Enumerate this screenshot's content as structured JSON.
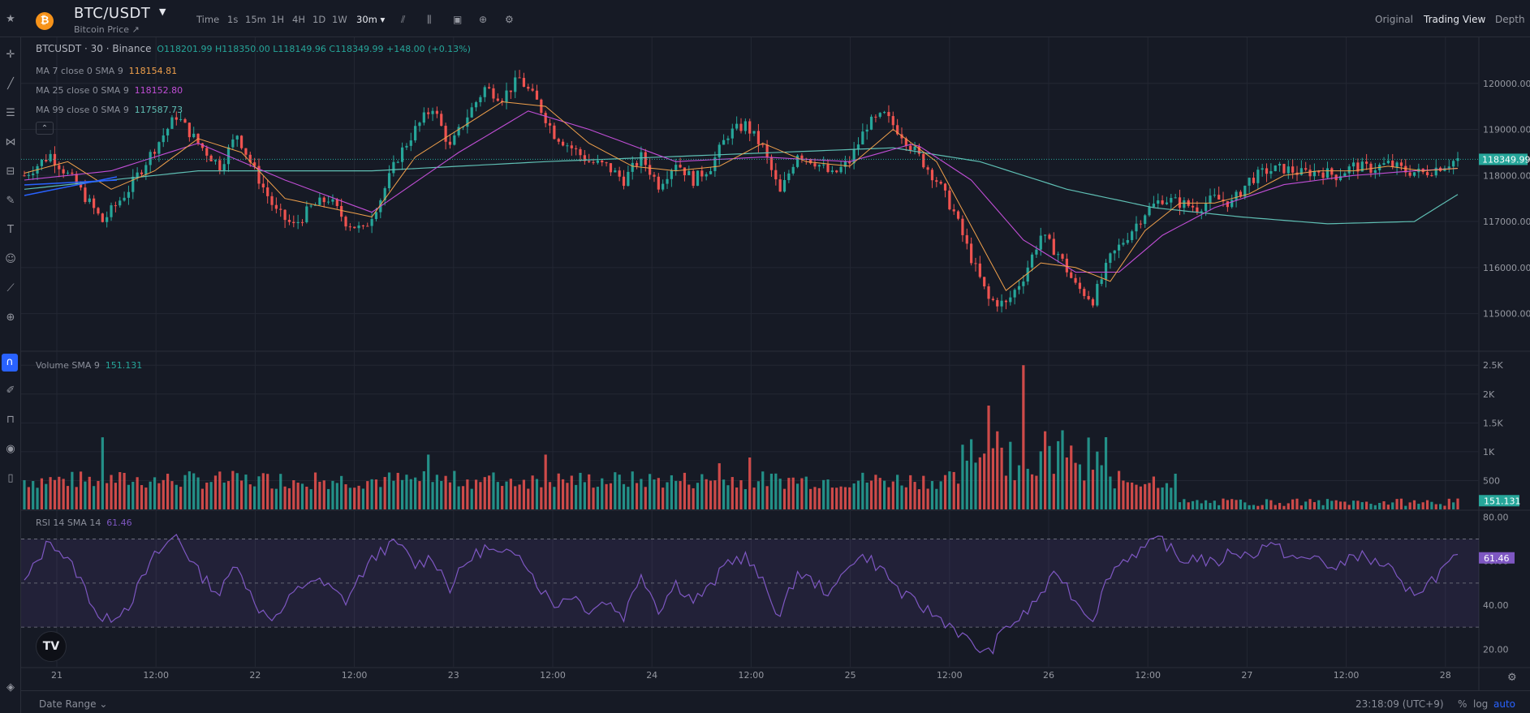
{
  "header": {
    "coin_icon": "bitcoin-icon",
    "symbol": "BTC/USDT",
    "subtitle": "Bitcoin Price ↗",
    "timeframes": [
      "Time",
      "1s",
      "15m",
      "1H",
      "4H",
      "1D",
      "1W",
      "30m ▾"
    ],
    "active_timeframe": "30m ▾",
    "tools": [
      "indicator-icon",
      "candle-type-icon",
      "camera-icon",
      "add-icon",
      "settings-icon"
    ],
    "views": [
      "Original",
      "Trading View",
      "Depth"
    ],
    "active_view": "Trading View"
  },
  "sidebar_icons": [
    "star-icon",
    "crosshair-icon",
    "trend-line-icon",
    "horizontal-lines-icon",
    "pattern-icon",
    "measure-icon",
    "brush-icon",
    "text-icon",
    "emoji-icon",
    "ruler-icon",
    "zoom-icon",
    "magnet-icon",
    "lock-drawings-icon",
    "lock-icon",
    "eye-icon",
    "trash-icon",
    "layers-icon"
  ],
  "legend": {
    "main": "BTCUSDT · 30 · Binance",
    "ohlc": "O118201.99 H118350.00 L118149.96 C118349.99 +148.00 (+0.13%)",
    "ma7_label": "MA 7 close 0 SMA 9",
    "ma7_value": "118154.81",
    "ma25_label": "MA 25 close 0 SMA 9",
    "ma25_value": "118152.80",
    "ma99_label": "MA 99 close 0 SMA 9",
    "ma99_value": "117587.73",
    "volume_label": "Volume SMA 9",
    "volume_value": "151.131",
    "rsi_label": "RSI 14 SMA 14",
    "rsi_value": "61.46"
  },
  "colors": {
    "up": "#26a69a",
    "down": "#ef5350",
    "ma7": "#f0a04b",
    "ma25": "#c14ed6",
    "ma99": "#5fbfb4",
    "rsi": "#7e57c2",
    "drawing": "#2962ff"
  },
  "footer": {
    "date_range": "Date Range ⌄",
    "clock": "23:18:09 (UTC+9)",
    "percent": "%",
    "log": "log",
    "auto": "auto"
  },
  "chart_data": [
    {
      "type": "candlestick",
      "name": "BTCUSDT 30m",
      "price_axis_ticks": [
        115000,
        116000,
        117000,
        118000,
        119000,
        120000
      ],
      "price_tick_labels": [
        "115000.00",
        "116000.00",
        "117000.00",
        "118000.00",
        "119000.00",
        "120000.00"
      ],
      "ylim": [
        114200,
        121000
      ],
      "last_price_label": "118349.99",
      "time_ticks": [
        "21",
        "12:00",
        "22",
        "12:00",
        "23",
        "12:00",
        "24",
        "12:00",
        "25",
        "12:00",
        "26",
        "12:00",
        "27",
        "12:00",
        "28"
      ],
      "close_path": [
        [
          0,
          118000
        ],
        [
          6,
          118450
        ],
        [
          12,
          117800
        ],
        [
          18,
          117000
        ],
        [
          24,
          117700
        ],
        [
          30,
          118600
        ],
        [
          35,
          119300
        ],
        [
          40,
          118700
        ],
        [
          45,
          118200
        ],
        [
          49,
          118900
        ],
        [
          53,
          118100
        ],
        [
          58,
          117200
        ],
        [
          62,
          116900
        ],
        [
          66,
          117300
        ],
        [
          70,
          117500
        ],
        [
          74,
          117000
        ],
        [
          78,
          116800
        ],
        [
          82,
          117500
        ],
        [
          86,
          118400
        ],
        [
          90,
          119000
        ],
        [
          94,
          119500
        ],
        [
          98,
          118600
        ],
        [
          102,
          119300
        ],
        [
          106,
          119900
        ],
        [
          110,
          119700
        ],
        [
          114,
          120100
        ],
        [
          118,
          119600
        ],
        [
          122,
          118900
        ],
        [
          126,
          118600
        ],
        [
          130,
          118300
        ],
        [
          134,
          118200
        ],
        [
          138,
          117900
        ],
        [
          142,
          118400
        ],
        [
          146,
          117800
        ],
        [
          150,
          118300
        ],
        [
          154,
          117900
        ],
        [
          158,
          118200
        ],
        [
          162,
          118900
        ],
        [
          166,
          119100
        ],
        [
          170,
          118600
        ],
        [
          174,
          117600
        ],
        [
          178,
          118500
        ],
        [
          182,
          118300
        ],
        [
          186,
          118000
        ],
        [
          190,
          118300
        ],
        [
          194,
          119100
        ],
        [
          198,
          119300
        ],
        [
          202,
          118900
        ],
        [
          206,
          118400
        ],
        [
          210,
          117900
        ],
        [
          214,
          117200
        ],
        [
          218,
          116200
        ],
        [
          222,
          115300
        ],
        [
          226,
          115200
        ],
        [
          230,
          115800
        ],
        [
          234,
          116700
        ],
        [
          238,
          116300
        ],
        [
          242,
          115600
        ],
        [
          246,
          115300
        ],
        [
          250,
          116200
        ],
        [
          254,
          116700
        ],
        [
          258,
          117200
        ],
        [
          262,
          117500
        ],
        [
          266,
          117400
        ],
        [
          270,
          117300
        ],
        [
          274,
          117500
        ],
        [
          278,
          117400
        ],
        [
          282,
          117900
        ],
        [
          286,
          118100
        ],
        [
          290,
          118150
        ],
        [
          294,
          118050
        ],
        [
          298,
          118100
        ],
        [
          302,
          118000
        ],
        [
          306,
          118200
        ],
        [
          310,
          118150
        ],
        [
          314,
          118250
        ],
        [
          318,
          118100
        ],
        [
          322,
          118050
        ],
        [
          326,
          118200
        ],
        [
          330,
          118349.99
        ]
      ],
      "ma7_path": [
        [
          0,
          118050
        ],
        [
          10,
          118300
        ],
        [
          20,
          117700
        ],
        [
          30,
          118100
        ],
        [
          40,
          118800
        ],
        [
          50,
          118500
        ],
        [
          60,
          117500
        ],
        [
          70,
          117300
        ],
        [
          80,
          117100
        ],
        [
          90,
          118400
        ],
        [
          100,
          119000
        ],
        [
          110,
          119600
        ],
        [
          120,
          119500
        ],
        [
          130,
          118700
        ],
        [
          140,
          118200
        ],
        [
          150,
          118100
        ],
        [
          160,
          118200
        ],
        [
          170,
          118700
        ],
        [
          180,
          118300
        ],
        [
          190,
          118200
        ],
        [
          200,
          119000
        ],
        [
          210,
          118300
        ],
        [
          218,
          116900
        ],
        [
          226,
          115500
        ],
        [
          234,
          116100
        ],
        [
          242,
          116000
        ],
        [
          250,
          115700
        ],
        [
          258,
          116800
        ],
        [
          266,
          117400
        ],
        [
          274,
          117400
        ],
        [
          282,
          117600
        ],
        [
          290,
          118000
        ],
        [
          298,
          118100
        ],
        [
          306,
          118100
        ],
        [
          314,
          118200
        ],
        [
          322,
          118100
        ],
        [
          330,
          118154.81
        ]
      ],
      "ma25_path": [
        [
          0,
          117900
        ],
        [
          20,
          118100
        ],
        [
          40,
          118700
        ],
        [
          60,
          117900
        ],
        [
          80,
          117200
        ],
        [
          100,
          118500
        ],
        [
          116,
          119400
        ],
        [
          130,
          119000
        ],
        [
          150,
          118300
        ],
        [
          170,
          118400
        ],
        [
          190,
          118300
        ],
        [
          205,
          118700
        ],
        [
          218,
          117900
        ],
        [
          230,
          116600
        ],
        [
          242,
          115900
        ],
        [
          252,
          115900
        ],
        [
          262,
          116700
        ],
        [
          274,
          117300
        ],
        [
          290,
          117800
        ],
        [
          306,
          118000
        ],
        [
          320,
          118100
        ],
        [
          330,
          118152.8
        ]
      ],
      "ma99_path": [
        [
          0,
          117700
        ],
        [
          40,
          118100
        ],
        [
          80,
          118100
        ],
        [
          120,
          118300
        ],
        [
          160,
          118450
        ],
        [
          200,
          118600
        ],
        [
          220,
          118300
        ],
        [
          240,
          117700
        ],
        [
          260,
          117300
        ],
        [
          280,
          117100
        ],
        [
          300,
          116950
        ],
        [
          320,
          117000
        ],
        [
          330,
          117587.73
        ]
      ]
    },
    {
      "type": "bar",
      "name": "Volume",
      "axis_ticks": [
        500,
        1000,
        1500,
        2000,
        2500
      ],
      "axis_tick_labels": [
        "500",
        "1K",
        "1.5K",
        "2K",
        "2.5K"
      ],
      "ylim": [
        0,
        2700
      ],
      "last_value_label": "151.131",
      "spikes": [
        [
          18,
          1250
        ],
        [
          67,
          640
        ],
        [
          93,
          950
        ],
        [
          120,
          950
        ],
        [
          160,
          800
        ],
        [
          167,
          900
        ],
        [
          222,
          1800
        ],
        [
          230,
          2500
        ],
        [
          240,
          900
        ]
      ]
    },
    {
      "type": "line",
      "name": "RSI 14",
      "axis_ticks": [
        20,
        40,
        60,
        80
      ],
      "axis_tick_labels": [
        "20.00",
        "40.00",
        "60.00",
        "80.00"
      ],
      "bands": [
        30,
        50,
        70
      ],
      "ylim": [
        12,
        82
      ],
      "last_value_label": "61.46",
      "path": [
        [
          0,
          50
        ],
        [
          6,
          70
        ],
        [
          12,
          55
        ],
        [
          18,
          32
        ],
        [
          24,
          40
        ],
        [
          30,
          62
        ],
        [
          35,
          72
        ],
        [
          40,
          55
        ],
        [
          45,
          45
        ],
        [
          49,
          60
        ],
        [
          53,
          40
        ],
        [
          58,
          34
        ],
        [
          62,
          45
        ],
        [
          66,
          52
        ],
        [
          70,
          48
        ],
        [
          74,
          42
        ],
        [
          78,
          55
        ],
        [
          82,
          65
        ],
        [
          86,
          68
        ],
        [
          90,
          58
        ],
        [
          94,
          62
        ],
        [
          98,
          48
        ],
        [
          102,
          60
        ],
        [
          106,
          66
        ],
        [
          110,
          62
        ],
        [
          114,
          65
        ],
        [
          118,
          50
        ],
        [
          122,
          40
        ],
        [
          126,
          45
        ],
        [
          130,
          38
        ],
        [
          134,
          42
        ],
        [
          138,
          35
        ],
        [
          142,
          55
        ],
        [
          146,
          38
        ],
        [
          150,
          50
        ],
        [
          154,
          42
        ],
        [
          158,
          48
        ],
        [
          162,
          60
        ],
        [
          166,
          62
        ],
        [
          170,
          50
        ],
        [
          174,
          35
        ],
        [
          178,
          55
        ],
        [
          182,
          50
        ],
        [
          186,
          45
        ],
        [
          190,
          60
        ],
        [
          194,
          62
        ],
        [
          198,
          55
        ],
        [
          202,
          45
        ],
        [
          206,
          40
        ],
        [
          210,
          35
        ],
        [
          214,
          30
        ],
        [
          218,
          22
        ],
        [
          222,
          18
        ],
        [
          226,
          30
        ],
        [
          230,
          35
        ],
        [
          234,
          45
        ],
        [
          238,
          55
        ],
        [
          242,
          42
        ],
        [
          246,
          34
        ],
        [
          250,
          55
        ],
        [
          254,
          62
        ],
        [
          258,
          66
        ],
        [
          262,
          70
        ],
        [
          266,
          60
        ],
        [
          270,
          62
        ],
        [
          274,
          58
        ],
        [
          278,
          65
        ],
        [
          282,
          62
        ],
        [
          286,
          68
        ],
        [
          290,
          64
        ],
        [
          294,
          60
        ],
        [
          298,
          62
        ],
        [
          302,
          55
        ],
        [
          306,
          64
        ],
        [
          310,
          60
        ],
        [
          314,
          58
        ],
        [
          318,
          45
        ],
        [
          322,
          48
        ],
        [
          326,
          55
        ],
        [
          330,
          61.46
        ]
      ]
    }
  ]
}
